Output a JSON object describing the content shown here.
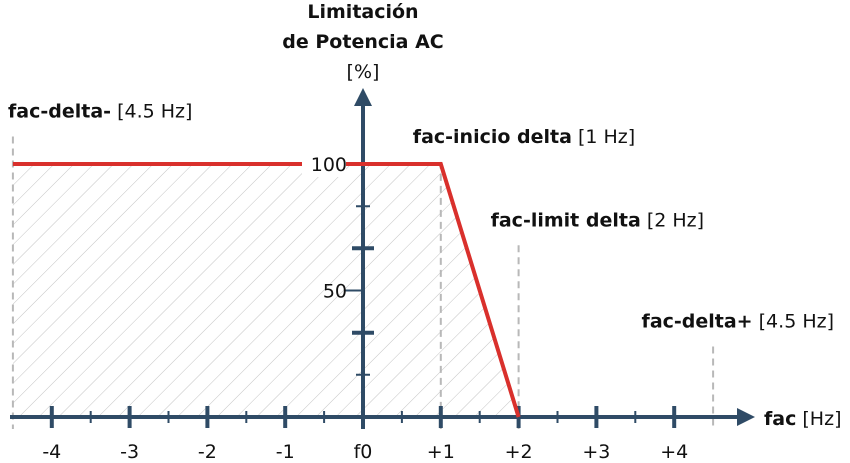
{
  "colors": {
    "axis": "#2f4b66",
    "curve": "#d9302c",
    "guide": "#b8b8b8",
    "hatch": "#c4c4c4",
    "text": "#111111"
  },
  "chart_data": {
    "type": "line",
    "title_lines": [
      "Limitación",
      "de Potencia AC"
    ],
    "ylabel_unit": "[%]",
    "xlabel": "fac",
    "xlabel_unit": "[Hz]",
    "xlim": [
      -4.6,
      4.8
    ],
    "ylim": [
      0,
      130
    ],
    "x_ticks": [
      {
        "v": -4,
        "label": "-4"
      },
      {
        "v": -3,
        "label": "-3"
      },
      {
        "v": -2,
        "label": "-2"
      },
      {
        "v": -1,
        "label": "-1"
      },
      {
        "v": 0,
        "label": "f0"
      },
      {
        "v": 1,
        "label": "+1"
      },
      {
        "v": 2,
        "label": "+2"
      },
      {
        "v": 3,
        "label": "+3"
      },
      {
        "v": 4,
        "label": "+4"
      }
    ],
    "x_minor_ticks": [
      -3.5,
      -2.5,
      -1.5,
      -0.5,
      0.5,
      1.5,
      2.5,
      3.5
    ],
    "y_ticks": [
      {
        "v": 50,
        "label": "50"
      },
      {
        "v": 100,
        "label": "100"
      }
    ],
    "y_major_marks": [
      33.3,
      66.7
    ],
    "y_minor_marks": [
      16.7,
      83.3
    ],
    "series": [
      {
        "points": [
          [
            -4.5,
            100
          ],
          [
            1,
            100
          ],
          [
            2,
            0
          ]
        ]
      }
    ],
    "guides": [
      {
        "x": -4.5,
        "bold": "fac-delta-",
        "value": "[4.5 Hz]",
        "anchor": "start",
        "y": 116
      },
      {
        "x": 1,
        "bold": "fac-inicio delta",
        "value": "[1 Hz]",
        "anchor": "start",
        "y": 106
      },
      {
        "x": 2,
        "bold": "fac-limit delta",
        "value": "[2 Hz]",
        "anchor": "start",
        "y": 73
      },
      {
        "x": 4.5,
        "bold": "fac-delta+",
        "value": "[4.5 Hz]",
        "anchor": "end",
        "y": 33
      }
    ]
  }
}
